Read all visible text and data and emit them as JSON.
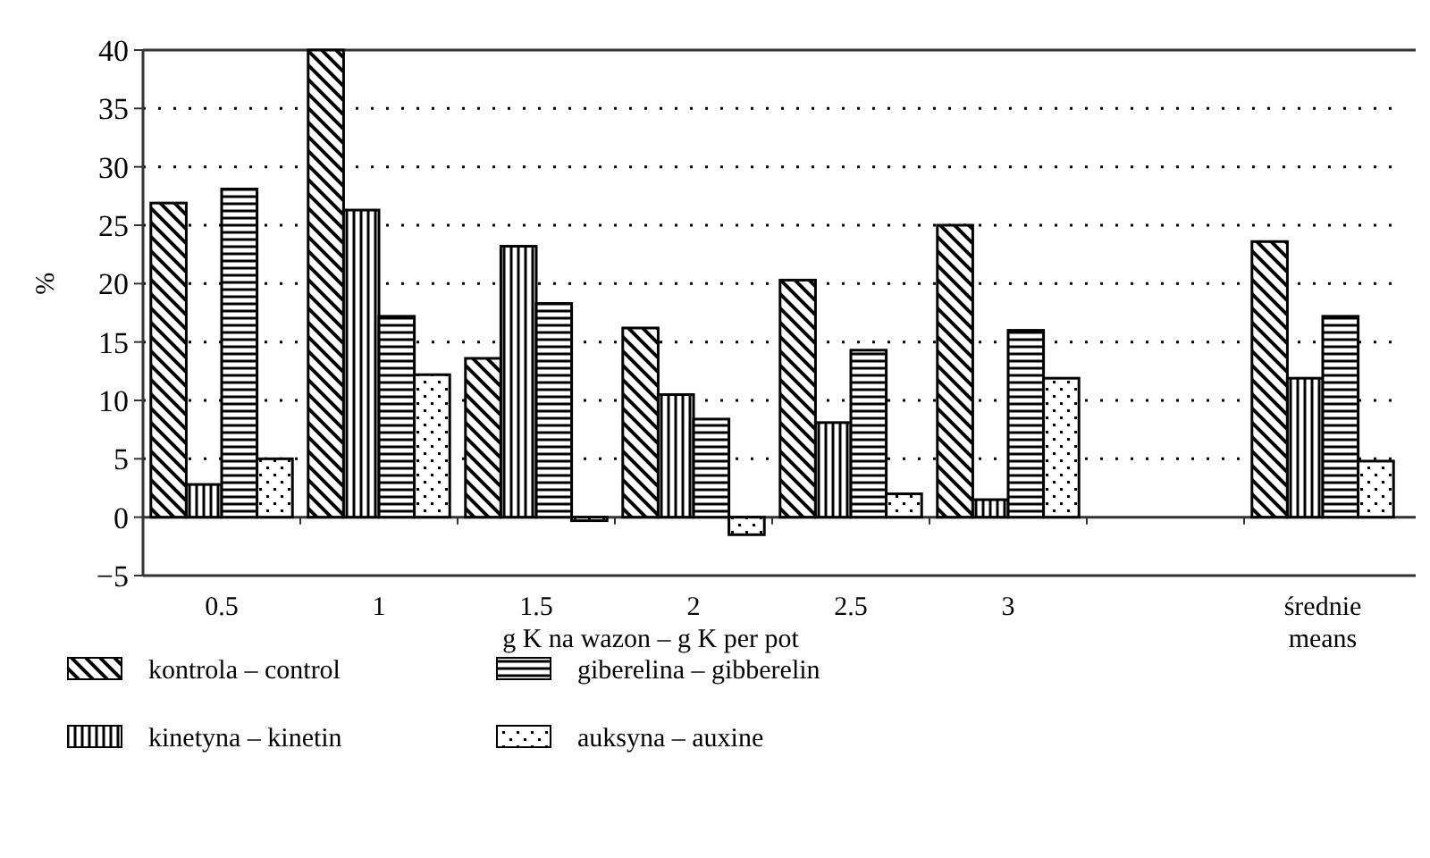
{
  "chart_data": {
    "type": "bar",
    "xlabel": "g K na wazon – g K per pot",
    "ylabel": "%",
    "categories": [
      "0.5",
      "1",
      "1.5",
      "2",
      "2.5",
      "3",
      null,
      "średnie\nmeans"
    ],
    "series": [
      {
        "name": "kontrola – control",
        "color": "#000000",
        "values": [
          26.9,
          40,
          13.6,
          16.2,
          20.3,
          25.0,
          null,
          23.6
        ]
      },
      {
        "name": "kinetyna – kinetin",
        "color": "#000000",
        "values": [
          2.8,
          26.3,
          23.2,
          10.5,
          8.1,
          1.5,
          null,
          11.9
        ]
      },
      {
        "name": "giberelina – gibberelin",
        "color": "#000000",
        "values": [
          28.1,
          17.2,
          18.3,
          8.4,
          14.3,
          16.0,
          null,
          17.2
        ]
      },
      {
        "name": "auksyna – auxine",
        "color": "#000000",
        "values": [
          5.0,
          12.2,
          -0.3,
          -1.5,
          2.0,
          11.9,
          null,
          4.8
        ]
      }
    ],
    "ylim": [
      -5,
      40
    ],
    "yticks": [
      {
        "value": -5,
        "label": "−5"
      },
      0,
      5,
      10,
      15,
      20,
      25,
      30,
      35,
      40
    ],
    "grid": "y",
    "legend": "bottom"
  }
}
